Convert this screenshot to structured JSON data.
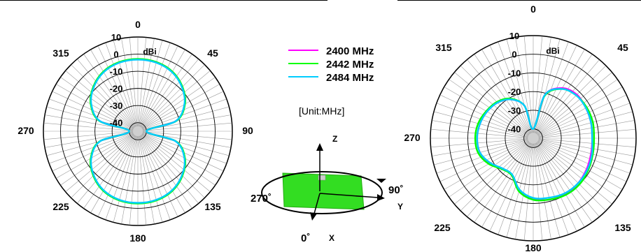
{
  "chart_data": [
    {
      "type": "polar",
      "angle_labels": [
        "0",
        "45",
        "90",
        "135",
        "180",
        "225",
        "270",
        "315"
      ],
      "radial_ticks": [
        "10",
        "0",
        "-10",
        "-20",
        "-30",
        "-40"
      ],
      "radial_unit": "dBi",
      "rlim": [
        -45,
        10
      ],
      "grid": true,
      "angles": [
        0,
        15,
        30,
        45,
        60,
        75,
        90,
        105,
        120,
        135,
        150,
        165,
        180,
        195,
        210,
        225,
        240,
        255,
        270,
        285,
        300,
        315,
        330,
        345
      ],
      "series": [
        {
          "name": "2400 MHz",
          "color": "#ff00ff",
          "values": [
            -3,
            -3.4,
            -5,
            -8.5,
            -13.5,
            -22,
            -40,
            -22,
            -13.5,
            -8.5,
            -5,
            -3.4,
            -3,
            -3.4,
            -5,
            -8.5,
            -13.5,
            -22,
            -40,
            -22,
            -13.5,
            -8.5,
            -5,
            -3.4
          ]
        },
        {
          "name": "2442 MHz",
          "color": "#00ff00",
          "values": [
            -2.8,
            -3.2,
            -4.8,
            -8.3,
            -13.3,
            -21.8,
            -40,
            -21.8,
            -13.3,
            -8.3,
            -4.8,
            -3.2,
            -2.8,
            -3.2,
            -4.8,
            -8.3,
            -13.3,
            -21.8,
            -40,
            -21.8,
            -13.3,
            -8.3,
            -4.8,
            -3.2
          ]
        },
        {
          "name": "2484 MHz",
          "color": "#00ccff",
          "values": [
            -3.2,
            -3.6,
            -5.2,
            -8.7,
            -13.7,
            -22.2,
            -40,
            -22.2,
            -13.7,
            -8.7,
            -5.2,
            -3.6,
            -3.2,
            -3.6,
            -5.2,
            -8.7,
            -13.7,
            -22.2,
            -40,
            -22.2,
            -13.7,
            -8.7,
            -5.2,
            -3.6
          ]
        }
      ]
    },
    {
      "type": "polar",
      "angle_labels": [
        "0",
        "45",
        "90",
        "135",
        "180",
        "225",
        "270",
        "315"
      ],
      "radial_ticks": [
        "10",
        "0",
        "-10",
        "-20",
        "-30",
        "-40"
      ],
      "radial_unit": "dBi",
      "rlim": [
        -45,
        10
      ],
      "grid": true,
      "angles": [
        0,
        15,
        30,
        45,
        60,
        75,
        90,
        105,
        120,
        135,
        150,
        165,
        180,
        195,
        210,
        225,
        240,
        255,
        270,
        285,
        300,
        315,
        330,
        345
      ],
      "series": [
        {
          "name": "2400 MHz",
          "color": "#ff00ff",
          "values": [
            -40,
            -21,
            -14,
            -12,
            -12.5,
            -13,
            -13.5,
            -13,
            -12,
            -11,
            -10.5,
            -11,
            -12.5,
            -16,
            -22,
            -22,
            -18,
            -15.5,
            -15,
            -15.5,
            -16.5,
            -18,
            -21,
            -27
          ]
        },
        {
          "name": "2442 MHz",
          "color": "#00ff00",
          "values": [
            -40,
            -21.5,
            -14.5,
            -12.5,
            -12,
            -12,
            -12.5,
            -12,
            -11,
            -10,
            -10,
            -11,
            -12,
            -15.5,
            -22,
            -21.5,
            -17.5,
            -14.5,
            -14,
            -14.5,
            -16,
            -17.5,
            -20.5,
            -27
          ]
        },
        {
          "name": "2484 MHz",
          "color": "#00ccff",
          "values": [
            -40,
            -21,
            -14.5,
            -12.5,
            -12.5,
            -13,
            -13.5,
            -12.5,
            -11.5,
            -11,
            -11,
            -12,
            -13,
            -16.5,
            -22.5,
            -22,
            -18.5,
            -15.5,
            -15,
            -15.5,
            -16.5,
            -18,
            -21,
            -27
          ]
        }
      ]
    }
  ],
  "legend": [
    "2400 MHz",
    "2442 MHz",
    "2484 MHz"
  ],
  "unit_note": "[Unit:MHz]",
  "axes_diagram": {
    "z": "Z",
    "y": "Y",
    "x": "X",
    "angle_90": "90˚",
    "angle_270": "270˚",
    "angle_0": "0˚"
  }
}
